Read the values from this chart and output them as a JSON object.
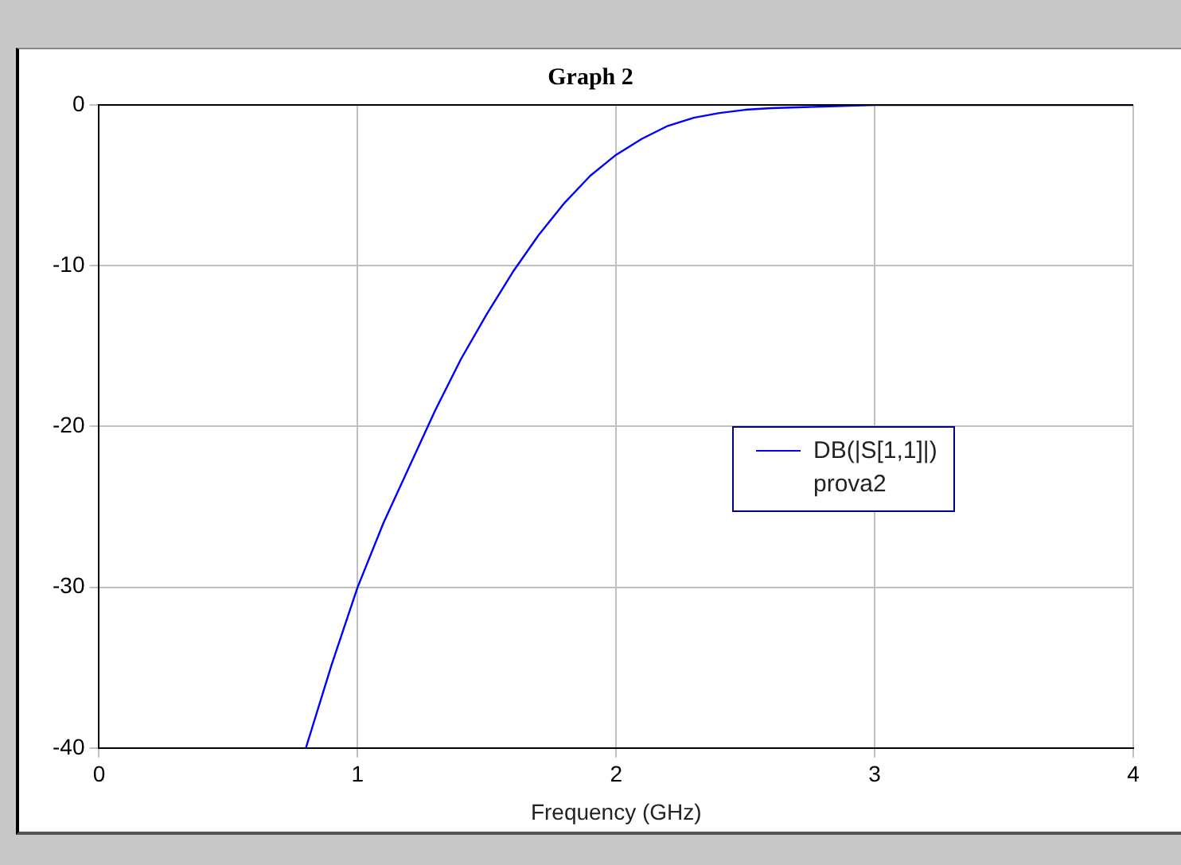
{
  "chart_data": {
    "type": "line",
    "title": "Graph 2",
    "xlabel": "Frequency (GHz)",
    "legend_title": "prova2",
    "series": [
      {
        "name": "DB(|S[1,1]|)",
        "color": "#0000ff",
        "x": [
          0.8,
          0.9,
          1.0,
          1.1,
          1.2,
          1.3,
          1.4,
          1.5,
          1.6,
          1.7,
          1.8,
          1.9,
          2.0,
          2.1,
          2.2,
          2.3,
          2.4,
          2.5,
          2.6,
          2.8,
          3.0,
          4.0
        ],
        "values": [
          -40,
          -34.8,
          -30,
          -26,
          -22.5,
          -19,
          -15.8,
          -13,
          -10.4,
          -8.1,
          -6.1,
          -4.4,
          -3.1,
          -2.1,
          -1.3,
          -0.8,
          -0.5,
          -0.3,
          -0.2,
          -0.1,
          0,
          0
        ]
      }
    ],
    "xlim": [
      0,
      4
    ],
    "xticks": [
      0,
      1,
      2,
      3,
      4
    ],
    "ylim": [
      -40,
      0
    ],
    "yticks": [
      0,
      -10,
      -20,
      -30,
      -40
    ],
    "grid": true,
    "legend": "right",
    "marker": "none",
    "line_style": "solid"
  }
}
